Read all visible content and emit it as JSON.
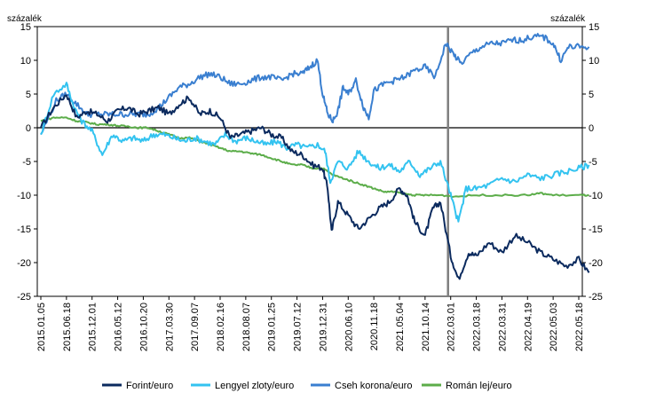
{
  "chart_data": {
    "type": "line",
    "unit_left": "százalék",
    "unit_right": "százalék",
    "ylim": [
      -25,
      15
    ],
    "yticks": [
      15,
      10,
      5,
      0,
      -5,
      -10,
      -15,
      -20,
      -25
    ],
    "x_tick_labels": [
      "2015.01.05",
      "2015.06.18",
      "2015.12.01",
      "2016.05.12",
      "2016.10.20",
      "2017.03.30",
      "2017.09.07",
      "2018.02.16",
      "2018.08.07",
      "2019.01.25",
      "2019.07.12",
      "2019.12.31",
      "2020.06.10",
      "2020.11.18",
      "2021.05.04",
      "2021.10.14",
      "2022.03.01",
      "2022.03.18",
      "2022.03.31",
      "2022.04.19",
      "2022.05.03",
      "2022.05.18"
    ],
    "vertical_marker_at_tick": "2022.03.01",
    "series": [
      {
        "name": "Forint/euro",
        "color": "#0b2a5e",
        "points": [
          [
            0,
            0
          ],
          [
            0.5,
            3
          ],
          [
            1,
            5
          ],
          [
            1.4,
            1.5
          ],
          [
            1.8,
            2.5
          ],
          [
            2.2,
            2
          ],
          [
            2.6,
            1
          ],
          [
            3,
            2.5
          ],
          [
            3.4,
            3
          ],
          [
            3.8,
            2
          ],
          [
            4.2,
            2.5
          ],
          [
            4.6,
            3
          ],
          [
            5,
            2
          ],
          [
            5.4,
            3.5
          ],
          [
            5.8,
            4.5
          ],
          [
            6.2,
            2
          ],
          [
            6.6,
            2.5
          ],
          [
            7,
            1.5
          ],
          [
            7.4,
            -1.5
          ],
          [
            7.8,
            -1
          ],
          [
            8.2,
            -0.5
          ],
          [
            8.6,
            0
          ],
          [
            9,
            -1
          ],
          [
            9.4,
            -1.5
          ],
          [
            9.8,
            -3.5
          ],
          [
            10.2,
            -4
          ],
          [
            10.6,
            -5.5
          ],
          [
            11,
            -6
          ],
          [
            11.2,
            -9
          ],
          [
            11.35,
            -15.5
          ],
          [
            11.6,
            -11
          ],
          [
            12,
            -13
          ],
          [
            12.4,
            -15
          ],
          [
            12.8,
            -13.5
          ],
          [
            13.2,
            -12
          ],
          [
            13.6,
            -11
          ],
          [
            14,
            -9
          ],
          [
            14.3,
            -10
          ],
          [
            14.6,
            -14
          ],
          [
            15,
            -16
          ],
          [
            15.3,
            -12
          ],
          [
            15.6,
            -11
          ],
          [
            16,
            -19
          ],
          [
            16.3,
            -22.5
          ],
          [
            16.7,
            -18.5
          ],
          [
            17,
            -19
          ],
          [
            17.5,
            -17
          ],
          [
            18,
            -18.5
          ],
          [
            18.5,
            -16
          ],
          [
            19,
            -17
          ],
          [
            19.5,
            -18.5
          ],
          [
            20,
            -19.5
          ],
          [
            20.5,
            -20.5
          ],
          [
            21,
            -19.5
          ],
          [
            21.4,
            -21.5
          ]
        ]
      },
      {
        "name": "Lengyel zloty/euro",
        "color": "#33c3f0",
        "points": [
          [
            0,
            -1
          ],
          [
            0.5,
            5
          ],
          [
            1,
            6.5
          ],
          [
            1.3,
            3
          ],
          [
            1.6,
            1
          ],
          [
            2,
            -0.5
          ],
          [
            2.4,
            -4
          ],
          [
            2.8,
            -1
          ],
          [
            3.2,
            -2
          ],
          [
            3.6,
            -1.5
          ],
          [
            4,
            -2
          ],
          [
            4.4,
            -1
          ],
          [
            4.8,
            -1
          ],
          [
            5.2,
            -1.5
          ],
          [
            5.6,
            -2
          ],
          [
            6,
            -1.5
          ],
          [
            6.4,
            -2
          ],
          [
            6.8,
            -2.5
          ],
          [
            7.2,
            -1
          ],
          [
            7.6,
            -2
          ],
          [
            8,
            -1.5
          ],
          [
            8.4,
            -2
          ],
          [
            8.8,
            -2.5
          ],
          [
            9.2,
            -2
          ],
          [
            9.6,
            -3
          ],
          [
            10,
            -2.5
          ],
          [
            10.4,
            -3
          ],
          [
            10.8,
            -2.5
          ],
          [
            11.1,
            -3.5
          ],
          [
            11.3,
            -8
          ],
          [
            11.6,
            -5
          ],
          [
            12,
            -6
          ],
          [
            12.4,
            -3.5
          ],
          [
            12.8,
            -5
          ],
          [
            13.2,
            -6
          ],
          [
            13.6,
            -5.5
          ],
          [
            14,
            -6.5
          ],
          [
            14.4,
            -5
          ],
          [
            14.8,
            -7
          ],
          [
            15.2,
            -6
          ],
          [
            15.6,
            -5
          ],
          [
            16,
            -10
          ],
          [
            16.3,
            -14
          ],
          [
            16.6,
            -9
          ],
          [
            17,
            -9
          ],
          [
            17.5,
            -8.5
          ],
          [
            18,
            -7.5
          ],
          [
            18.5,
            -8
          ],
          [
            19,
            -7
          ],
          [
            19.5,
            -7.5
          ],
          [
            20,
            -7
          ],
          [
            20.5,
            -6.5
          ],
          [
            21,
            -6
          ],
          [
            21.4,
            -5.5
          ]
        ]
      },
      {
        "name": "Cseh korona/euro",
        "color": "#3a7fd0",
        "points": [
          [
            0,
            -1
          ],
          [
            0.6,
            4
          ],
          [
            1,
            5
          ],
          [
            1.4,
            3.5
          ],
          [
            1.8,
            2
          ],
          [
            2.2,
            2
          ],
          [
            2.6,
            2
          ],
          [
            3,
            2
          ],
          [
            3.4,
            2
          ],
          [
            3.8,
            2
          ],
          [
            4.2,
            2
          ],
          [
            4.6,
            3
          ],
          [
            5,
            4.5
          ],
          [
            5.4,
            6
          ],
          [
            5.8,
            6.5
          ],
          [
            6.2,
            7.5
          ],
          [
            6.6,
            8
          ],
          [
            7,
            7.5
          ],
          [
            7.4,
            6.5
          ],
          [
            7.8,
            6.5
          ],
          [
            8.2,
            7
          ],
          [
            8.6,
            7.5
          ],
          [
            9,
            7.5
          ],
          [
            9.4,
            7
          ],
          [
            9.8,
            8
          ],
          [
            10.2,
            8
          ],
          [
            10.5,
            9
          ],
          [
            10.8,
            10
          ],
          [
            11,
            5
          ],
          [
            11.2,
            2
          ],
          [
            11.4,
            1
          ],
          [
            11.6,
            2.5
          ],
          [
            11.8,
            6
          ],
          [
            12,
            5
          ],
          [
            12.3,
            7
          ],
          [
            12.6,
            3
          ],
          [
            12.8,
            1.5
          ],
          [
            13,
            5.5
          ],
          [
            13.4,
            6.5
          ],
          [
            13.8,
            7
          ],
          [
            14.2,
            7.5
          ],
          [
            14.6,
            8.5
          ],
          [
            15,
            9
          ],
          [
            15.4,
            7.5
          ],
          [
            15.8,
            12.5
          ],
          [
            16.1,
            11
          ],
          [
            16.4,
            9.5
          ],
          [
            16.8,
            11
          ],
          [
            17.2,
            12
          ],
          [
            17.6,
            12.5
          ],
          [
            18,
            12.5
          ],
          [
            18.4,
            13
          ],
          [
            18.8,
            13
          ],
          [
            19.2,
            13.5
          ],
          [
            19.6,
            13.5
          ],
          [
            20,
            12.5
          ],
          [
            20.3,
            10
          ],
          [
            20.6,
            12
          ],
          [
            21,
            12
          ],
          [
            21.4,
            12
          ]
        ]
      },
      {
        "name": "Román lej/euro",
        "color": "#5cad4a",
        "points": [
          [
            0,
            1
          ],
          [
            0.5,
            1.5
          ],
          [
            1,
            1.5
          ],
          [
            1.4,
            1
          ],
          [
            1.8,
            0.8
          ],
          [
            2.2,
            0.5
          ],
          [
            2.6,
            0.5
          ],
          [
            3,
            0.3
          ],
          [
            3.4,
            0.2
          ],
          [
            3.8,
            0
          ],
          [
            4.2,
            0
          ],
          [
            4.6,
            -0.5
          ],
          [
            5,
            -1
          ],
          [
            5.4,
            -1.5
          ],
          [
            5.8,
            -1.5
          ],
          [
            6.2,
            -2
          ],
          [
            6.6,
            -2.5
          ],
          [
            7,
            -3
          ],
          [
            7.4,
            -3.5
          ],
          [
            7.8,
            -3.5
          ],
          [
            8.2,
            -3.8
          ],
          [
            8.6,
            -4
          ],
          [
            9,
            -4.5
          ],
          [
            9.4,
            -5
          ],
          [
            9.8,
            -5.5
          ],
          [
            10.2,
            -5.5
          ],
          [
            10.6,
            -6
          ],
          [
            11,
            -6
          ],
          [
            11.4,
            -7
          ],
          [
            11.8,
            -7.5
          ],
          [
            12.2,
            -8
          ],
          [
            12.6,
            -8.5
          ],
          [
            13,
            -9
          ],
          [
            13.4,
            -9.5
          ],
          [
            13.8,
            -9.5
          ],
          [
            14.2,
            -9.8
          ],
          [
            14.6,
            -10
          ],
          [
            15,
            -10
          ],
          [
            15.6,
            -10
          ],
          [
            16.2,
            -10.2
          ],
          [
            17,
            -10
          ],
          [
            18,
            -10
          ],
          [
            19,
            -10
          ],
          [
            19.5,
            -9.7
          ],
          [
            20,
            -10
          ],
          [
            21,
            -10
          ],
          [
            21.4,
            -10
          ]
        ]
      }
    ],
    "legend_position": "bottom"
  }
}
